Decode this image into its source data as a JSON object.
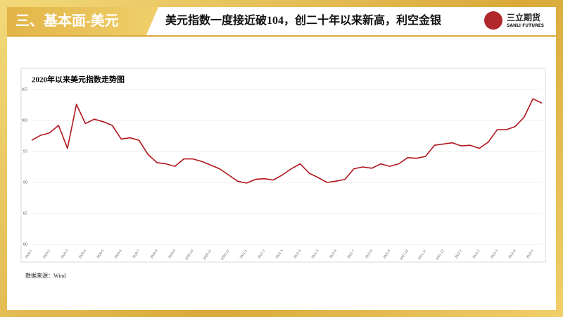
{
  "header": {
    "section": "三、基本面-美元",
    "title": "美元指数一度接近破104，创二十年以来新高，利空金银"
  },
  "logo": {
    "name": "三立期货",
    "sub": "SANLI FUTURES"
  },
  "source": "数据来源：Wind",
  "chart_data": {
    "type": "line",
    "title": "2020年以来美元指数走势图",
    "color": "#b0141c",
    "categories": [
      "2020-1",
      null,
      "2020-2",
      null,
      "2020-3",
      null,
      "2020-4",
      null,
      "2020-5",
      null,
      "2020-6",
      null,
      "2020-7",
      null,
      "2020-8",
      null,
      "2020-9",
      null,
      "2020-10",
      null,
      "2020-11",
      null,
      "2020-12",
      null,
      "2021-1",
      null,
      "2021-2",
      null,
      "2021-3",
      null,
      "2021-4",
      null,
      "2021-5",
      null,
      "2021-6",
      null,
      "2021-7",
      null,
      "2021-8",
      null,
      "2021-9",
      null,
      "2021-10",
      null,
      "2021-11",
      null,
      "2021-12",
      null,
      "2022-1",
      null,
      "2022-2",
      null,
      "2022-3",
      null,
      "2022-4",
      null,
      "2022-5",
      null
    ],
    "values": [
      96.8,
      97.6,
      98.0,
      99.2,
      95.5,
      102.6,
      99.5,
      100.2,
      99.8,
      99.2,
      97.0,
      97.2,
      96.8,
      94.5,
      93.2,
      93.0,
      92.6,
      93.8,
      93.8,
      93.4,
      92.8,
      92.2,
      91.2,
      90.2,
      89.9,
      90.5,
      90.6,
      90.4,
      91.2,
      92.2,
      93.0,
      91.5,
      90.8,
      90.0,
      90.2,
      90.5,
      92.2,
      92.5,
      92.3,
      93.0,
      92.6,
      93.0,
      94.0,
      93.9,
      94.2,
      96.0,
      96.2,
      96.4,
      95.9,
      96.0,
      95.5,
      96.5,
      98.5,
      98.5,
      99.0,
      100.5,
      103.5,
      102.8
    ],
    "ylim": [
      80,
      105
    ],
    "yticks": [
      80,
      85,
      90,
      95,
      100,
      105
    ],
    "grid": true
  }
}
